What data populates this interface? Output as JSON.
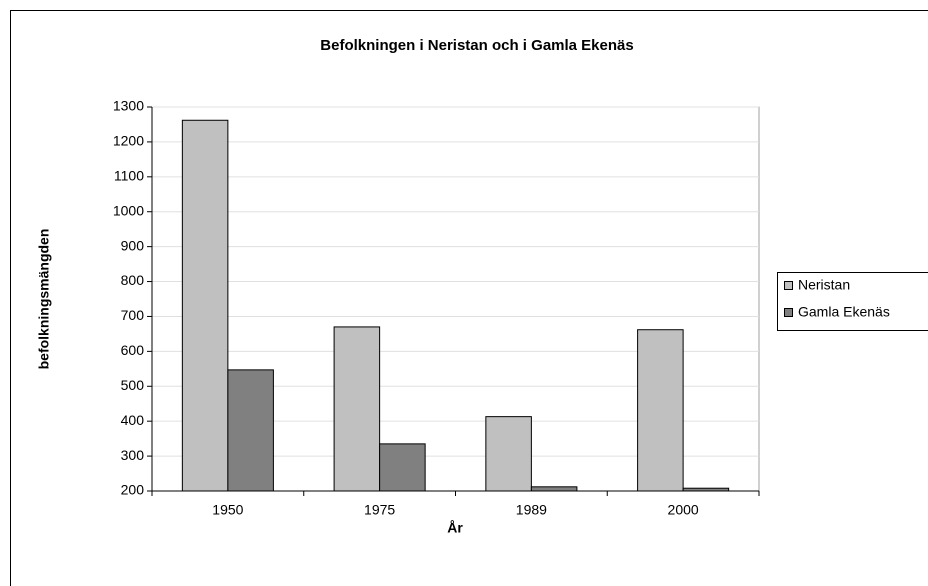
{
  "chart_data": {
    "type": "bar",
    "title": "Befolkningen i Neristan och i Gamla Ekenäs",
    "xlabel": "År",
    "ylabel": "befolkningsmängden",
    "categories": [
      "1950",
      "1975",
      "1989",
      "2000"
    ],
    "series": [
      {
        "name": "Neristan",
        "color": "#c0c0c0",
        "values": [
          1262,
          670,
          413,
          662
        ]
      },
      {
        "name": "Gamla Ekenäs",
        "color": "#808080",
        "values": [
          547,
          335,
          212,
          208
        ]
      }
    ],
    "ylim": [
      200,
      1300
    ],
    "yticks": [
      200,
      300,
      400,
      500,
      600,
      700,
      800,
      900,
      1000,
      1100,
      1200,
      1300
    ],
    "grid": true,
    "legend": "right"
  }
}
